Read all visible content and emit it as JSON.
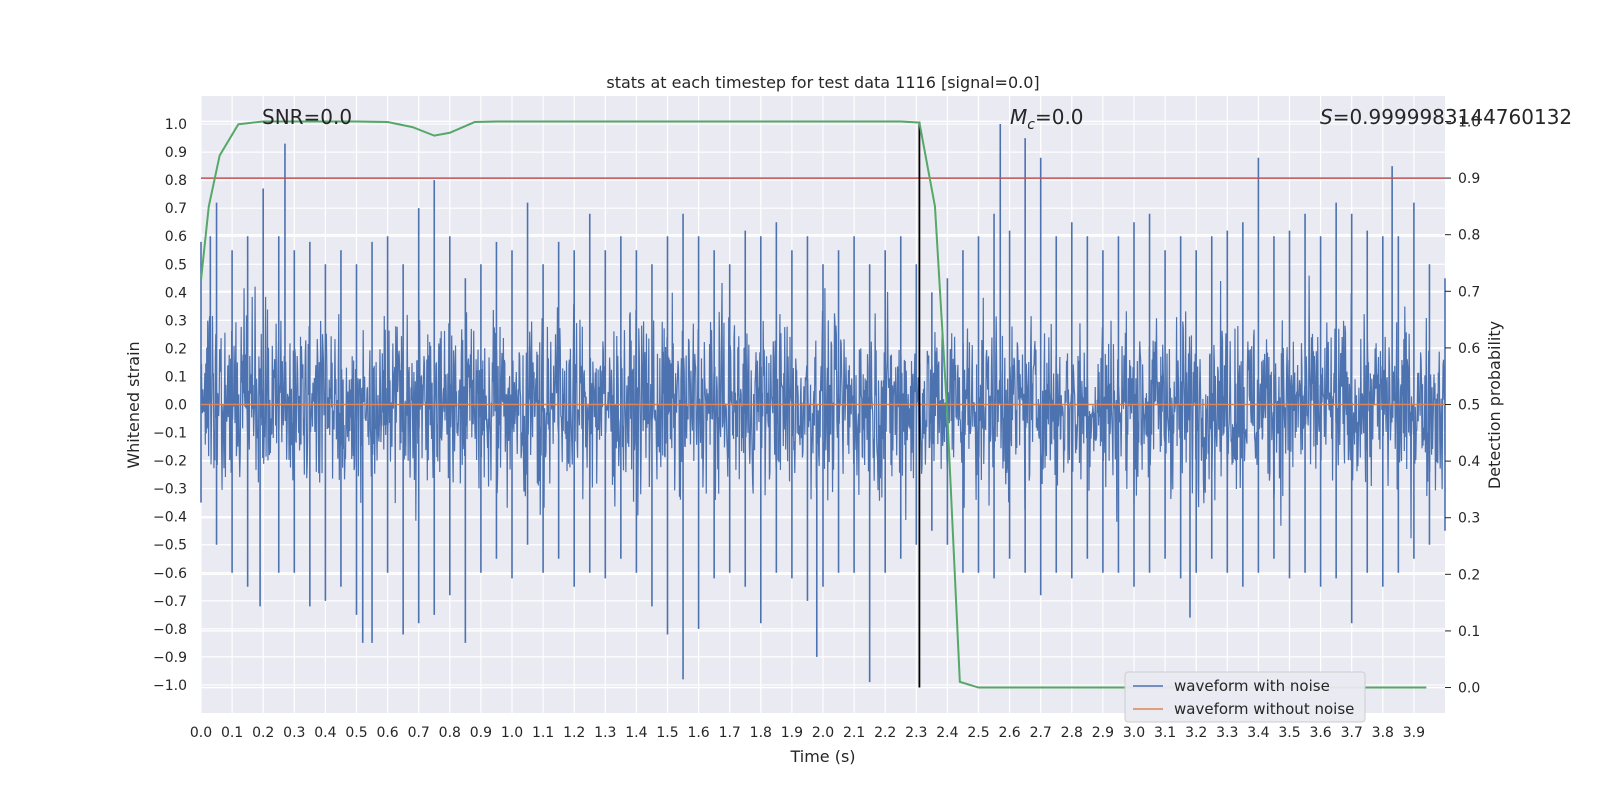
{
  "chart_data": {
    "type": "line",
    "title": "stats at each timestep for test data 1116 [signal=0.0]",
    "xlabel": "Time (s)",
    "ylabel": "Whitened strain",
    "y2label": "Detection probability",
    "xlim": [
      0.0,
      4.0
    ],
    "ylim": [
      -1.1,
      1.1
    ],
    "y2lim": [
      -0.045,
      1.045
    ],
    "xticks": [
      "0.0",
      "0.1",
      "0.2",
      "0.3",
      "0.4",
      "0.5",
      "0.6",
      "0.7",
      "0.8",
      "0.9",
      "1.0",
      "1.1",
      "1.2",
      "1.3",
      "1.4",
      "1.5",
      "1.6",
      "1.7",
      "1.8",
      "1.9",
      "2.0",
      "2.1",
      "2.2",
      "2.3",
      "2.4",
      "2.5",
      "2.6",
      "2.7",
      "2.8",
      "2.9",
      "3.0",
      "3.1",
      "3.2",
      "3.3",
      "3.4",
      "3.5",
      "3.6",
      "3.7",
      "3.8",
      "3.9"
    ],
    "yticks": [
      "1.0",
      "0.9",
      "0.8",
      "0.7",
      "0.6",
      "0.5",
      "0.4",
      "0.3",
      "0.2",
      "0.1",
      "0.0",
      "-0.1",
      "-0.2",
      "-0.3",
      "-0.4",
      "-0.5",
      "-0.6",
      "-0.7",
      "-0.8",
      "-0.9",
      "-1.0"
    ],
    "y2ticks": [
      "1.0",
      "0.9",
      "0.8",
      "0.7",
      "0.6",
      "0.5",
      "0.4",
      "0.3",
      "0.2",
      "0.1",
      "0.0"
    ],
    "grid": true,
    "legend_position": "lower-right",
    "series": [
      {
        "name": "waveform with noise",
        "color": "#4c72b0",
        "axis": "left",
        "envelope_upper": [
          [
            0.0,
            0.58
          ],
          [
            0.03,
            0.6
          ],
          [
            0.05,
            0.72
          ],
          [
            0.1,
            0.55
          ],
          [
            0.15,
            0.6
          ],
          [
            0.2,
            0.77
          ],
          [
            0.25,
            0.6
          ],
          [
            0.27,
            0.93
          ],
          [
            0.3,
            0.55
          ],
          [
            0.35,
            0.58
          ],
          [
            0.4,
            0.5
          ],
          [
            0.45,
            0.55
          ],
          [
            0.5,
            0.5
          ],
          [
            0.55,
            0.58
          ],
          [
            0.6,
            0.6
          ],
          [
            0.65,
            0.5
          ],
          [
            0.7,
            0.7
          ],
          [
            0.75,
            0.8
          ],
          [
            0.8,
            0.6
          ],
          [
            0.85,
            0.45
          ],
          [
            0.9,
            0.5
          ],
          [
            0.95,
            0.58
          ],
          [
            1.0,
            0.55
          ],
          [
            1.05,
            0.72
          ],
          [
            1.1,
            0.5
          ],
          [
            1.15,
            0.58
          ],
          [
            1.2,
            0.55
          ],
          [
            1.25,
            0.68
          ],
          [
            1.3,
            0.55
          ],
          [
            1.35,
            0.6
          ],
          [
            1.4,
            0.55
          ],
          [
            1.45,
            0.5
          ],
          [
            1.5,
            0.6
          ],
          [
            1.55,
            0.68
          ],
          [
            1.6,
            0.6
          ],
          [
            1.65,
            0.55
          ],
          [
            1.7,
            0.5
          ],
          [
            1.75,
            0.62
          ],
          [
            1.8,
            0.6
          ],
          [
            1.85,
            0.65
          ],
          [
            1.9,
            0.55
          ],
          [
            1.95,
            0.6
          ],
          [
            2.0,
            0.5
          ],
          [
            2.05,
            0.55
          ],
          [
            2.1,
            0.6
          ],
          [
            2.15,
            0.5
          ],
          [
            2.2,
            0.55
          ],
          [
            2.25,
            0.6
          ],
          [
            2.3,
            0.5
          ],
          [
            2.35,
            0.4
          ],
          [
            2.4,
            0.45
          ],
          [
            2.45,
            0.55
          ],
          [
            2.5,
            0.6
          ],
          [
            2.55,
            0.68
          ],
          [
            2.57,
            1.0
          ],
          [
            2.6,
            0.62
          ],
          [
            2.65,
            0.95
          ],
          [
            2.7,
            0.88
          ],
          [
            2.75,
            0.6
          ],
          [
            2.8,
            0.65
          ],
          [
            2.85,
            0.6
          ],
          [
            2.9,
            0.55
          ],
          [
            2.95,
            0.6
          ],
          [
            3.0,
            0.65
          ],
          [
            3.05,
            0.68
          ],
          [
            3.1,
            0.55
          ],
          [
            3.15,
            0.6
          ],
          [
            3.2,
            0.55
          ],
          [
            3.25,
            0.6
          ],
          [
            3.3,
            0.62
          ],
          [
            3.35,
            0.65
          ],
          [
            3.4,
            0.88
          ],
          [
            3.45,
            0.6
          ],
          [
            3.5,
            0.62
          ],
          [
            3.55,
            0.68
          ],
          [
            3.6,
            0.6
          ],
          [
            3.65,
            0.72
          ],
          [
            3.7,
            0.68
          ],
          [
            3.75,
            0.62
          ],
          [
            3.8,
            0.6
          ],
          [
            3.83,
            0.85
          ],
          [
            3.85,
            0.6
          ],
          [
            3.9,
            0.72
          ],
          [
            3.95,
            0.5
          ],
          [
            4.0,
            0.45
          ]
        ],
        "envelope_lower": [
          [
            0.0,
            -0.35
          ],
          [
            0.05,
            -0.5
          ],
          [
            0.1,
            -0.6
          ],
          [
            0.15,
            -0.65
          ],
          [
            0.19,
            -0.72
          ],
          [
            0.25,
            -0.6
          ],
          [
            0.3,
            -0.6
          ],
          [
            0.35,
            -0.72
          ],
          [
            0.4,
            -0.7
          ],
          [
            0.45,
            -0.65
          ],
          [
            0.5,
            -0.75
          ],
          [
            0.52,
            -0.85
          ],
          [
            0.55,
            -0.85
          ],
          [
            0.6,
            -0.6
          ],
          [
            0.65,
            -0.82
          ],
          [
            0.7,
            -0.78
          ],
          [
            0.75,
            -0.75
          ],
          [
            0.8,
            -0.68
          ],
          [
            0.85,
            -0.85
          ],
          [
            0.9,
            -0.6
          ],
          [
            0.95,
            -0.55
          ],
          [
            1.0,
            -0.62
          ],
          [
            1.05,
            -0.5
          ],
          [
            1.1,
            -0.6
          ],
          [
            1.15,
            -0.55
          ],
          [
            1.2,
            -0.65
          ],
          [
            1.25,
            -0.6
          ],
          [
            1.3,
            -0.62
          ],
          [
            1.35,
            -0.55
          ],
          [
            1.4,
            -0.6
          ],
          [
            1.45,
            -0.72
          ],
          [
            1.5,
            -0.82
          ],
          [
            1.55,
            -0.98
          ],
          [
            1.6,
            -0.8
          ],
          [
            1.65,
            -0.62
          ],
          [
            1.7,
            -0.6
          ],
          [
            1.75,
            -0.65
          ],
          [
            1.8,
            -0.78
          ],
          [
            1.85,
            -0.6
          ],
          [
            1.9,
            -0.62
          ],
          [
            1.95,
            -0.7
          ],
          [
            1.98,
            -0.9
          ],
          [
            2.0,
            -0.65
          ],
          [
            2.05,
            -0.6
          ],
          [
            2.1,
            -0.6
          ],
          [
            2.15,
            -0.99
          ],
          [
            2.2,
            -0.6
          ],
          [
            2.25,
            -0.55
          ],
          [
            2.3,
            -0.5
          ],
          [
            2.35,
            -0.45
          ],
          [
            2.4,
            -0.5
          ],
          [
            2.45,
            -0.6
          ],
          [
            2.5,
            -0.6
          ],
          [
            2.55,
            -0.62
          ],
          [
            2.6,
            -0.55
          ],
          [
            2.65,
            -0.6
          ],
          [
            2.7,
            -0.68
          ],
          [
            2.75,
            -0.6
          ],
          [
            2.8,
            -0.62
          ],
          [
            2.85,
            -0.55
          ],
          [
            2.9,
            -0.6
          ],
          [
            2.95,
            -0.6
          ],
          [
            3.0,
            -0.65
          ],
          [
            3.05,
            -0.6
          ],
          [
            3.1,
            -0.55
          ],
          [
            3.15,
            -0.62
          ],
          [
            3.18,
            -0.76
          ],
          [
            3.2,
            -0.6
          ],
          [
            3.25,
            -0.55
          ],
          [
            3.3,
            -0.6
          ],
          [
            3.35,
            -0.65
          ],
          [
            3.4,
            -0.6
          ],
          [
            3.45,
            -0.55
          ],
          [
            3.5,
            -0.62
          ],
          [
            3.55,
            -0.6
          ],
          [
            3.6,
            -0.65
          ],
          [
            3.65,
            -0.62
          ],
          [
            3.7,
            -0.78
          ],
          [
            3.75,
            -0.6
          ],
          [
            3.8,
            -0.65
          ],
          [
            3.85,
            -0.6
          ],
          [
            3.9,
            -0.55
          ],
          [
            3.95,
            -0.5
          ],
          [
            4.0,
            -0.45
          ]
        ]
      },
      {
        "name": "waveform without noise",
        "color": "#dd8452",
        "axis": "left",
        "x": [
          0.0,
          4.0
        ],
        "y": [
          0.0,
          0.0
        ]
      },
      {
        "name": "",
        "color": "#55a868",
        "axis": "right",
        "x": [
          0.0,
          0.025,
          0.06,
          0.12,
          0.2,
          0.3,
          0.4,
          0.5,
          0.6,
          0.68,
          0.75,
          0.8,
          0.88,
          0.95,
          1.5,
          2.0,
          2.25,
          2.31,
          2.36,
          2.4,
          2.44,
          2.5,
          2.8,
          3.0,
          3.5,
          3.94
        ],
        "y": [
          0.72,
          0.85,
          0.94,
          0.995,
          1.0,
          1.0,
          1.0,
          1.0,
          0.999,
          0.99,
          0.975,
          0.98,
          0.999,
          1.0,
          1.0,
          1.0,
          1.0,
          0.998,
          0.85,
          0.48,
          0.01,
          0.0,
          0.0,
          0.0,
          0.0,
          0.0
        ]
      }
    ],
    "threshold_line": {
      "axis": "right",
      "y": 0.9,
      "color": "#c44e52"
    },
    "marker_line": {
      "x": 2.31,
      "y2_from": 0.0,
      "y2_to": 1.0,
      "color": "#000000"
    },
    "annotations": [
      {
        "text": "SNR=0.0",
        "x": 0.2,
        "y": 1.02
      },
      {
        "text": "=0.0",
        "symbol": "M",
        "subscript": "c",
        "x": 2.6,
        "y": 1.02
      },
      {
        "text": "=0.9999983144760132",
        "symbol": "S",
        "x": 3.6,
        "y": 1.02
      }
    ]
  }
}
